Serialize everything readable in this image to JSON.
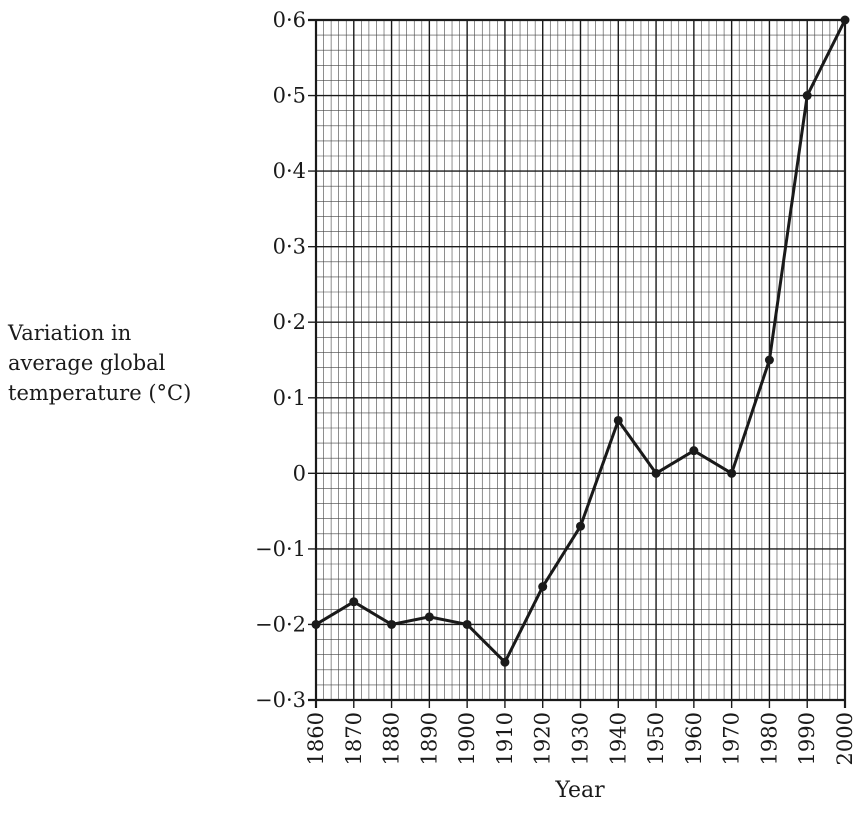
{
  "chart_data": {
    "type": "line",
    "ylabel_lines": [
      "Variation in",
      "average global",
      "temperature (°C)"
    ],
    "xlabel": "Year",
    "x": [
      1860,
      1870,
      1880,
      1890,
      1900,
      1910,
      1920,
      1930,
      1940,
      1950,
      1960,
      1970,
      1980,
      1990,
      2000
    ],
    "y": [
      -0.2,
      -0.17,
      -0.2,
      -0.19,
      -0.2,
      -0.25,
      -0.15,
      -0.07,
      0.07,
      0.0,
      0.03,
      0.0,
      0.15,
      0.5,
      0.6
    ],
    "xlim": [
      1860,
      2000
    ],
    "ylim": [
      -0.3,
      0.6
    ],
    "x_ticks": [
      "1860",
      "1870",
      "1880",
      "1890",
      "1900",
      "1910",
      "1920",
      "1930",
      "1940",
      "1950",
      "1960",
      "1970",
      "1980",
      "1990",
      "2000"
    ],
    "y_ticks": [
      "0·6",
      "0·5",
      "0·4",
      "0·3",
      "0·2",
      "0·1",
      "0",
      "−0·1",
      "−0·2",
      "−0·3"
    ],
    "y_tick_values": [
      0.6,
      0.5,
      0.4,
      0.3,
      0.2,
      0.1,
      0.0,
      -0.1,
      -0.2,
      -0.3
    ],
    "grid": true,
    "line_color": "#1a1a1a"
  }
}
